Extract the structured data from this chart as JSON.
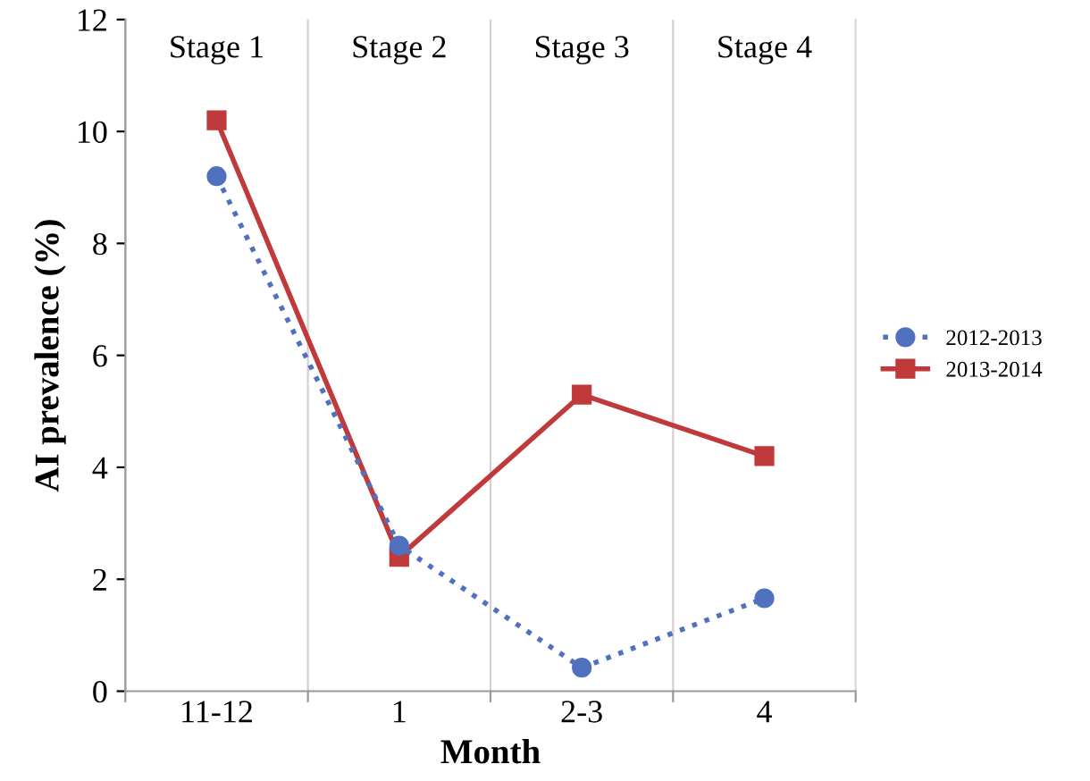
{
  "chart_data": {
    "type": "line",
    "xlabel": "Month",
    "ylabel": "AI prevalence (%)",
    "categories": [
      "11-12",
      "1",
      "2-3",
      "4"
    ],
    "series": [
      {
        "name": "2012-2013",
        "color": "#4f71be",
        "values": [
          9.2,
          2.6,
          0.42,
          1.66
        ],
        "marker": "circle",
        "line_style": "dotted"
      },
      {
        "name": "2013-2014",
        "color": "#c0393b",
        "values": [
          10.2,
          2.4,
          5.3,
          4.2
        ],
        "marker": "square",
        "line_style": "solid"
      }
    ],
    "ylim": [
      0,
      12
    ],
    "yticks": [
      0,
      2,
      4,
      6,
      8,
      10,
      12
    ],
    "grid": "x",
    "legend": "right",
    "annotations": [
      "Stage 1",
      "Stage 2",
      "Stage 3",
      "Stage 4"
    ]
  }
}
